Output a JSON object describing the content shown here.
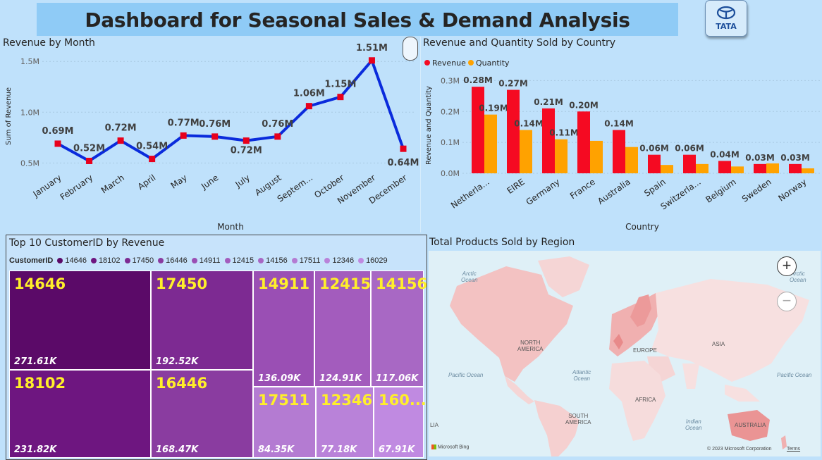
{
  "header": {
    "title": "Dashboard for Seasonal Sales & Demand Analysis",
    "logo_text": "TATA"
  },
  "panels": {
    "month_title": "Revenue by Month",
    "country_title": "Revenue and Quantity Sold by Country",
    "customer_title": "Top 10 CustomerID by Revenue",
    "map_title": "Total Products Sold by Region"
  },
  "chart_data": [
    {
      "type": "line",
      "title": "Revenue by Month",
      "xlabel": "Month",
      "ylabel": "Sum of Revenue",
      "categories": [
        "January",
        "February",
        "March",
        "April",
        "May",
        "June",
        "July",
        "August",
        "Septem...",
        "October",
        "November",
        "December"
      ],
      "values": [
        0.69,
        0.52,
        0.72,
        0.54,
        0.77,
        0.76,
        0.72,
        0.76,
        1.06,
        1.15,
        1.51,
        0.64
      ],
      "data_labels": [
        "0.69M",
        "0.52M",
        "0.72M",
        "0.54M",
        "0.77M",
        "0.76M",
        "0.72M",
        "0.76M",
        "1.06M",
        "1.15M",
        "1.51M",
        "0.64M"
      ],
      "y_ticks": [
        "0.5M",
        "1.0M",
        "1.5M"
      ],
      "y_tick_values": [
        0.5,
        1.0,
        1.5
      ],
      "ylim": [
        0.44,
        1.55
      ],
      "line_color": "#0a2bdc",
      "marker_color": "#e8001c",
      "grid": true
    },
    {
      "type": "bar",
      "title": "Revenue and Quantity Sold by Country",
      "xlabel": "Country",
      "ylabel": "Revenue and Quantity",
      "categories": [
        "Netherla...",
        "EIRE",
        "Germany",
        "France",
        "Australia",
        "Spain",
        "Switzerla...",
        "Belgium",
        "Sweden",
        "Norway"
      ],
      "series": [
        {
          "name": "Revenue",
          "color": "#f50a22",
          "values": [
            0.28,
            0.27,
            0.21,
            0.2,
            0.14,
            0.06,
            0.06,
            0.04,
            0.03,
            0.03
          ],
          "labels": [
            "0.28M",
            "0.27M",
            "0.21M",
            "0.20M",
            "0.14M",
            "0.06M",
            "0.06M",
            "0.04M",
            "0.03M",
            "0.03M"
          ]
        },
        {
          "name": "Quantity",
          "color": "#ffa200",
          "values": [
            0.19,
            0.14,
            0.11,
            0.105,
            0.085,
            0.027,
            0.03,
            0.022,
            0.032,
            0.016
          ],
          "labels": [
            "0.19M",
            "0.14M",
            "0.11M",
            "",
            "",
            "",
            "",
            "",
            "",
            ""
          ]
        }
      ],
      "y_ticks": [
        "0.0M",
        "0.1M",
        "0.2M",
        "0.3M"
      ],
      "y_tick_values": [
        0,
        0.1,
        0.2,
        0.3
      ],
      "ylim": [
        0,
        0.31
      ],
      "legend_position": "top-left",
      "grid": true
    },
    {
      "type": "treemap",
      "title": "Top 10 CustomerID by Revenue",
      "legend_label": "CustomerID",
      "items": [
        {
          "id": "14646",
          "display": "14646",
          "value": "271.61K",
          "color": "#5b0a68"
        },
        {
          "id": "18102",
          "display": "18102",
          "value": "231.82K",
          "color": "#6e1680"
        },
        {
          "id": "17450",
          "display": "17450",
          "value": "192.52K",
          "color": "#7d2a92"
        },
        {
          "id": "16446",
          "display": "16446",
          "value": "168.47K",
          "color": "#8a3ca0"
        },
        {
          "id": "14911",
          "display": "14911",
          "value": "136.09K",
          "color": "#9a4fb4"
        },
        {
          "id": "12415",
          "display": "12415",
          "value": "124.91K",
          "color": "#a35cbd"
        },
        {
          "id": "14156",
          "display": "14156",
          "value": "117.06K",
          "color": "#a868c4"
        },
        {
          "id": "17511",
          "display": "17511",
          "value": "84.35K",
          "color": "#b47bd2"
        },
        {
          "id": "12346",
          "display": "12346",
          "value": "77.18K",
          "color": "#b982d9"
        },
        {
          "id": "16029",
          "display": "160...",
          "value": "67.91K",
          "color": "#c08ae1"
        }
      ]
    }
  ],
  "map": {
    "labels": {
      "arctic_left": "Arctic\nOcean",
      "arctic_right": "Arctic\nOcean",
      "north_america": "NORTH\nAMERICA",
      "europe": "EUROPE",
      "asia": "ASIA",
      "atlantic": "Atlantic\nOcean",
      "pacific_left": "Pacific Ocean",
      "pacific_right": "Pacific Ocean",
      "africa": "AFRICA",
      "south_america": "SOUTH\nAMERICA",
      "indian": "Indian\nOcean",
      "australia": "AUSTRALIA",
      "edge": "LIA"
    },
    "bing": "Microsoft Bing",
    "copyright": "© 2023 Microsoft Corporation",
    "terms": "Terms",
    "zoom_in": "+",
    "zoom_out": "−"
  }
}
